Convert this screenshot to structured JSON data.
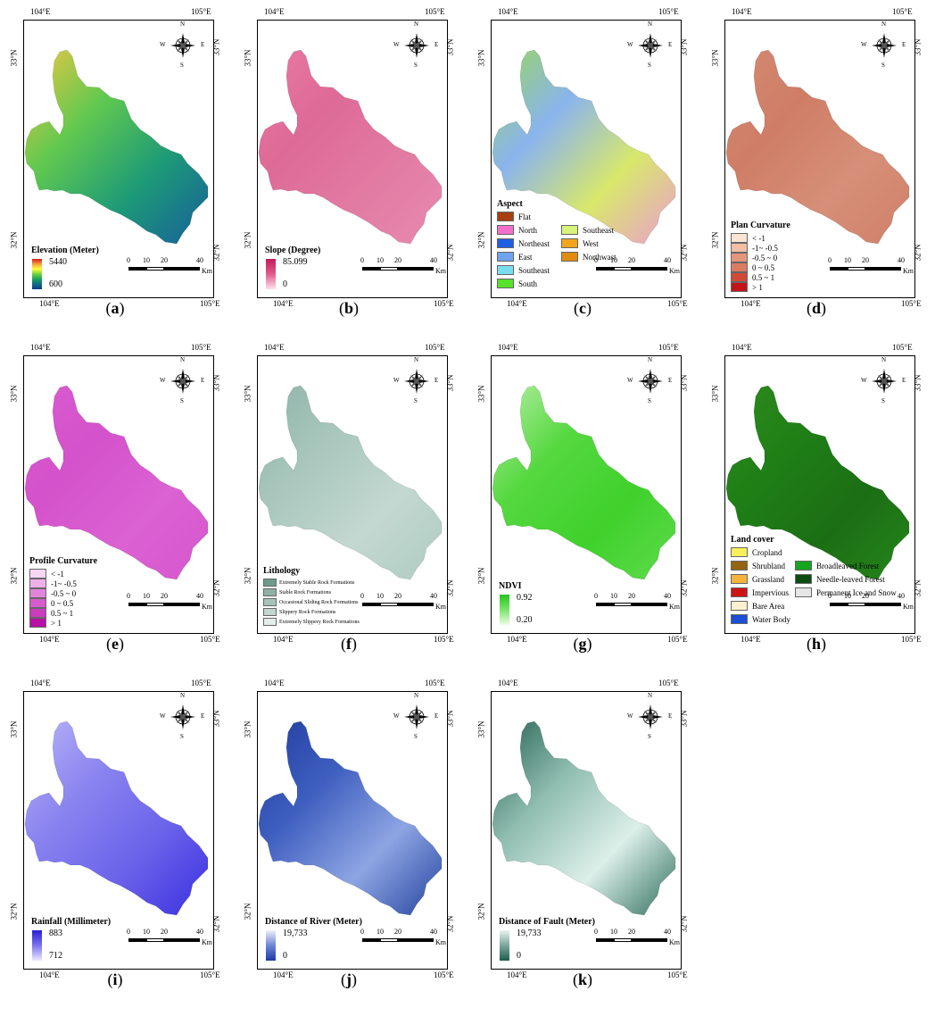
{
  "geo_labels": {
    "lon_left": "104°E",
    "lon_right": "105°E",
    "lat_top": "33°N",
    "lat_bottom": "32°N"
  },
  "compass_labels": {
    "n": "N",
    "s": "S",
    "e": "E",
    "w": "W"
  },
  "scale_bar": {
    "ticks": [
      "0",
      "10",
      "20",
      "40"
    ],
    "unit": "Km"
  },
  "panels": [
    {
      "letter": "a",
      "title": "Elevation (Meter)",
      "legend_type": "gradient",
      "gradient_high": "5440",
      "gradient_low": "600",
      "ramp": [
        "#d7191c",
        "#f4a03b",
        "#ffff3f",
        "#6fd23d",
        "#19a35a",
        "#106b87",
        "#0b3c8c"
      ],
      "fill_stops": [
        "#f2c744",
        "#62c94f",
        "#1d9a77",
        "#175e9b"
      ]
    },
    {
      "letter": "b",
      "title": "Slope (Degree)",
      "legend_type": "gradient",
      "gradient_high": "85.099",
      "gradient_low": "0",
      "ramp": [
        "#c2185b",
        "#e35b8c",
        "#fbe3ec"
      ],
      "fill_stops": [
        "#e879a2",
        "#de6a97",
        "#e27ba3",
        "#e88ab0"
      ]
    },
    {
      "letter": "c",
      "title": "Aspect",
      "legend_type": "categorical",
      "fill_stops": [
        "#9ad85a",
        "#8ab4ee",
        "#d8e86b",
        "#ec9dcf"
      ],
      "categories": [
        {
          "label": "Flat",
          "color": "#a6400f"
        },
        {
          "label": "North",
          "color": "#f270c9"
        },
        {
          "label": "Northeast",
          "color": "#1f5fe0"
        },
        {
          "label": "East",
          "color": "#6fa3eb"
        },
        {
          "label": "Southeast",
          "color": "#79ddf0"
        },
        {
          "label": "South",
          "color": "#58e22c"
        },
        {
          "label": "Southeast",
          "color": "#d8f27b"
        },
        {
          "label": "West",
          "color": "#f2a51d"
        },
        {
          "label": "Northwast",
          "color": "#e08c12"
        }
      ]
    },
    {
      "letter": "d",
      "title": "Plan Curvature",
      "legend_type": "categorical",
      "fill_stops": [
        "#d48a73",
        "#cf7d66",
        "#d68f78",
        "#d08069"
      ],
      "categories": [
        {
          "label": "< -1",
          "color": "#fbe4d3"
        },
        {
          "label": "-1~ -0.5",
          "color": "#f2bfa4"
        },
        {
          "label": "-0.5 ~ 0",
          "color": "#e4967c"
        },
        {
          "label": "0 ~ 0.5",
          "color": "#db7b62"
        },
        {
          "label": "0.5 ~ 1",
          "color": "#cf4a38"
        },
        {
          "label": "> 1",
          "color": "#c2141b"
        }
      ]
    },
    {
      "letter": "e",
      "title": "Profile Curvature",
      "legend_type": "categorical",
      "fill_stops": [
        "#d95bd0",
        "#d452cb",
        "#db62d3",
        "#d656cd"
      ],
      "categories": [
        {
          "label": "< -1",
          "color": "#f7d6f3"
        },
        {
          "label": "-1~ -0.5",
          "color": "#eeb0e9"
        },
        {
          "label": "-0.5 ~ 0",
          "color": "#e184db"
        },
        {
          "label": "0 ~ 0.5",
          "color": "#d65bcd"
        },
        {
          "label": "0.5 ~ 1",
          "color": "#c93cbd"
        },
        {
          "label": "> 1",
          "color": "#b80fa6"
        }
      ]
    },
    {
      "letter": "f",
      "title": "Lithology",
      "legend_type": "categorical",
      "fill_stops": [
        "#8fb3a8",
        "#a9c7bd",
        "#c3d8d1",
        "#aecbc1"
      ],
      "categories": [
        {
          "label": "Extremely Stable Rock Formations",
          "color": "#6f9a8c"
        },
        {
          "label": "Stable Rock Formations",
          "color": "#8fb1a5"
        },
        {
          "label": "Occasional Sliding Rock Formations",
          "color": "#a6c3b9"
        },
        {
          "label": "Slippery Rock Formations",
          "color": "#c2d7d0"
        },
        {
          "label": "Extremely Slippery Rock Formations",
          "color": "#e3eeea"
        }
      ]
    },
    {
      "letter": "g",
      "title": "NDVI",
      "legend_type": "gradient",
      "gradient_high": "0.92",
      "gradient_low": "0.20",
      "ramp": [
        "#22c51a",
        "#7be46b",
        "#eefce9"
      ],
      "fill_stops": [
        "#b9efa8",
        "#55d83f",
        "#3fd12c",
        "#60db4c"
      ]
    },
    {
      "letter": "h",
      "title": "Land cover",
      "legend_type": "categorical",
      "fill_stops": [
        "#2d8a1e",
        "#1f7f16",
        "#1c6e14",
        "#25861b"
      ],
      "categories": [
        {
          "label": "Cropland",
          "color": "#f7f05a"
        },
        {
          "label": "Shrubland",
          "color": "#946512"
        },
        {
          "label": "Grassland",
          "color": "#f5b23c"
        },
        {
          "label": "Impervious",
          "color": "#cc1414"
        },
        {
          "label": "Bare Area",
          "color": "#fbf1d2"
        },
        {
          "label": "Water Body",
          "color": "#1a4fd6"
        },
        {
          "label": "Broadleaved Forest",
          "color": "#16a51e"
        },
        {
          "label": "Needle-leaved Forest",
          "color": "#0b4d10"
        },
        {
          "label": "Permanent Ice and Snow",
          "color": "#e6e6e6"
        }
      ]
    },
    {
      "letter": "i",
      "title": "Rainfall (Millimeter)",
      "legend_type": "gradient",
      "gradient_high": "883",
      "gradient_low": "712",
      "ramp": [
        "#2a1ed6",
        "#7b74ee",
        "#eceaff"
      ],
      "fill_stops": [
        "#b9b5f7",
        "#8a84f0",
        "#6a62ea",
        "#3b2fe0"
      ]
    },
    {
      "letter": "j",
      "title": "Distance of River (Meter)",
      "legend_type": "gradient",
      "gradient_high": "19,733",
      "gradient_low": "0",
      "ramp": [
        "#eef0fb",
        "#6f86d6",
        "#1c3aa3"
      ],
      "fill_stops": [
        "#1f3d9e",
        "#3f5fc0",
        "#8ea5e3",
        "#25449f"
      ]
    },
    {
      "letter": "k",
      "title": "Distance of Fault (Meter)",
      "legend_type": "gradient",
      "gradient_high": "19,733",
      "gradient_low": "0",
      "ramp": [
        "#e9f4f0",
        "#7aa79a",
        "#1e5c4d"
      ],
      "fill_stops": [
        "#23604f",
        "#8fbdb0",
        "#dcefe9",
        "#2e6e5c"
      ]
    }
  ]
}
